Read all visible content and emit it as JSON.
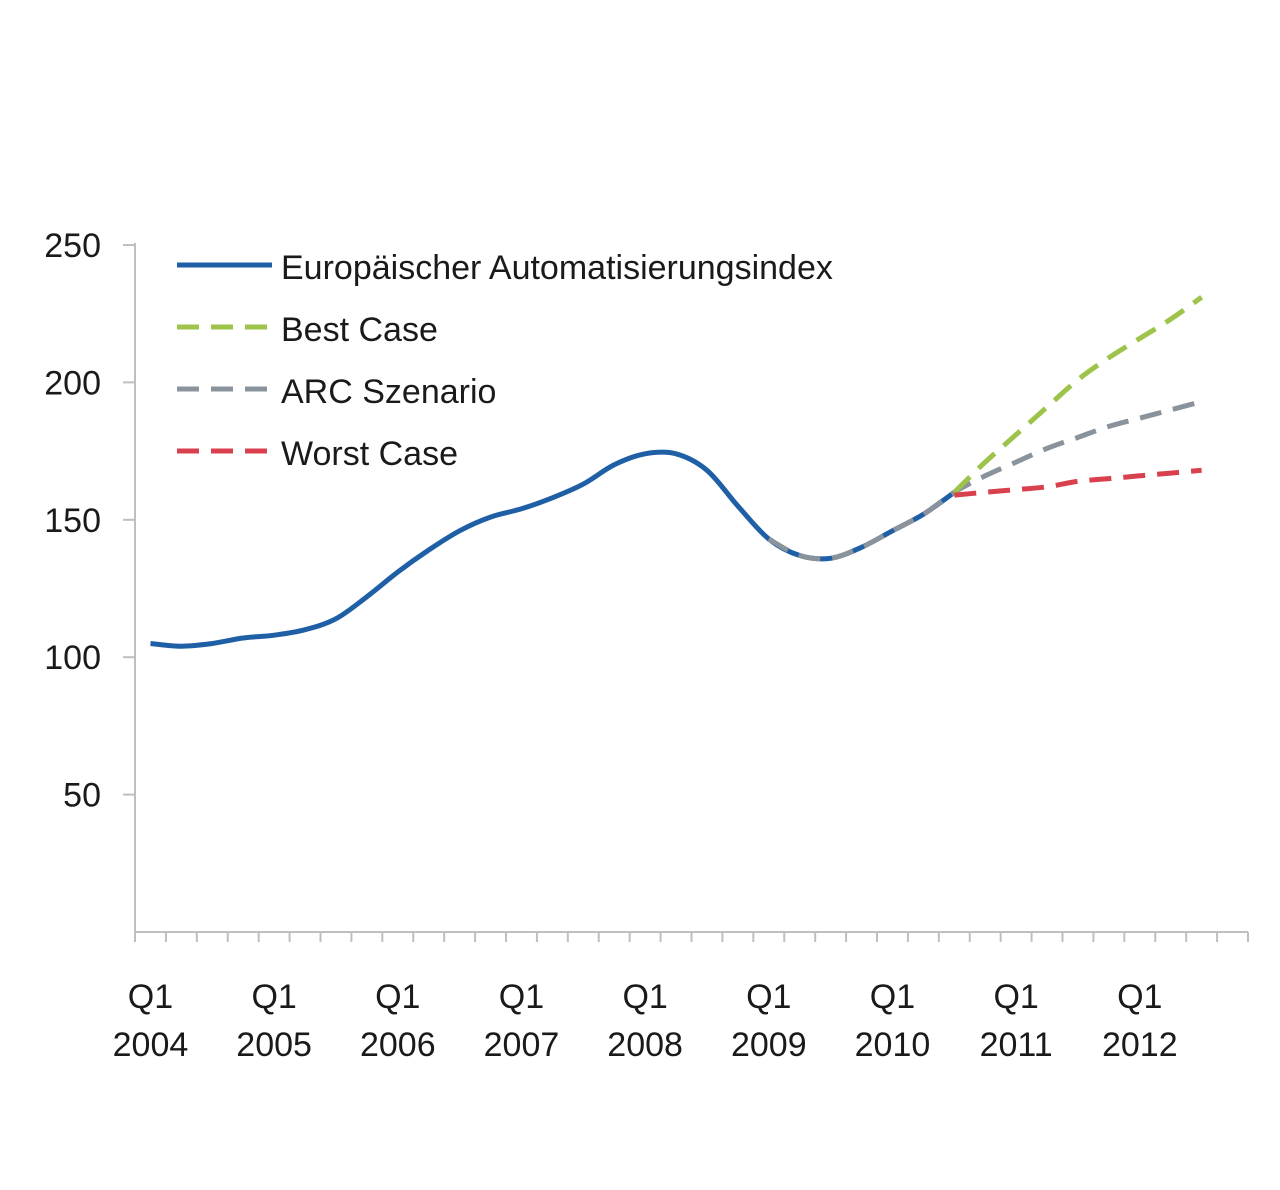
{
  "chart_data": {
    "type": "line",
    "ylim": [
      0,
      250
    ],
    "yticks": [
      50,
      100,
      150,
      200,
      250
    ],
    "x_tick_labels": [
      {
        "quarter": "Q1",
        "year": "2004"
      },
      {
        "quarter": "Q1",
        "year": "2005"
      },
      {
        "quarter": "Q1",
        "year": "2006"
      },
      {
        "quarter": "Q1",
        "year": "2007"
      },
      {
        "quarter": "Q1",
        "year": "2008"
      },
      {
        "quarter": "Q1",
        "year": "2009"
      },
      {
        "quarter": "Q1",
        "year": "2010"
      },
      {
        "quarter": "Q1",
        "year": "2011"
      },
      {
        "quarter": "Q1",
        "year": "2012"
      }
    ],
    "x_range_quarters": [
      "Q1 2004",
      "Q4 2012"
    ],
    "legend_position": "top-left",
    "series": [
      {
        "name": "Europäischer Automatisierungsindex",
        "color": "#1f5fa6",
        "dash": "solid",
        "points": [
          [
            "Q1 2004",
            105
          ],
          [
            "Q2 2004",
            104
          ],
          [
            "Q3 2004",
            105
          ],
          [
            "Q4 2004",
            107
          ],
          [
            "Q1 2005",
            108
          ],
          [
            "Q2 2005",
            110
          ],
          [
            "Q3 2005",
            114
          ],
          [
            "Q4 2005",
            122
          ],
          [
            "Q1 2006",
            131
          ],
          [
            "Q2 2006",
            139
          ],
          [
            "Q3 2006",
            146
          ],
          [
            "Q4 2006",
            151
          ],
          [
            "Q1 2007",
            154
          ],
          [
            "Q2 2007",
            158
          ],
          [
            "Q3 2007",
            163
          ],
          [
            "Q4 2007",
            170
          ],
          [
            "Q1 2008",
            174
          ],
          [
            "Q2 2008",
            174
          ],
          [
            "Q3 2008",
            168
          ],
          [
            "Q4 2008",
            155
          ],
          [
            "Q1 2009",
            143
          ],
          [
            "Q2 2009",
            137
          ],
          [
            "Q3 2009",
            136
          ],
          [
            "Q4 2009",
            140
          ],
          [
            "Q1 2010",
            146
          ],
          [
            "Q2 2010",
            152
          ],
          [
            "Q3 2010",
            160
          ]
        ]
      },
      {
        "name": "Best Case",
        "color": "#9dc34a",
        "dash": "dashed",
        "points": [
          [
            "Q3 2010",
            160
          ],
          [
            "Q4 2010",
            171
          ],
          [
            "Q1 2011",
            181
          ],
          [
            "Q2 2011",
            191
          ],
          [
            "Q3 2011",
            201
          ],
          [
            "Q4 2011",
            209
          ],
          [
            "Q1 2012",
            216
          ],
          [
            "Q2 2012",
            223
          ],
          [
            "Q3 2012",
            231
          ]
        ]
      },
      {
        "name": "ARC Szenario",
        "color": "#8a939b",
        "dash": "dashed",
        "points": [
          [
            "Q1 2009",
            143
          ],
          [
            "Q2 2009",
            137
          ],
          [
            "Q3 2009",
            136
          ],
          [
            "Q4 2009",
            140
          ],
          [
            "Q1 2010",
            146
          ],
          [
            "Q2 2010",
            152
          ],
          [
            "Q3 2010",
            160
          ],
          [
            "Q4 2010",
            166
          ],
          [
            "Q1 2011",
            171
          ],
          [
            "Q2 2011",
            176
          ],
          [
            "Q3 2011",
            180
          ],
          [
            "Q4 2011",
            184
          ],
          [
            "Q1 2012",
            187
          ],
          [
            "Q2 2012",
            190
          ],
          [
            "Q3 2012",
            193
          ]
        ]
      },
      {
        "name": "Worst Case",
        "color": "#d9404e",
        "dash": "dashed",
        "points": [
          [
            "Q3 2010",
            159
          ],
          [
            "Q4 2010",
            160
          ],
          [
            "Q1 2011",
            161
          ],
          [
            "Q2 2011",
            162
          ],
          [
            "Q3 2011",
            164
          ],
          [
            "Q4 2011",
            165
          ],
          [
            "Q1 2012",
            166
          ],
          [
            "Q2 2012",
            167
          ],
          [
            "Q3 2012",
            168
          ]
        ]
      }
    ]
  }
}
